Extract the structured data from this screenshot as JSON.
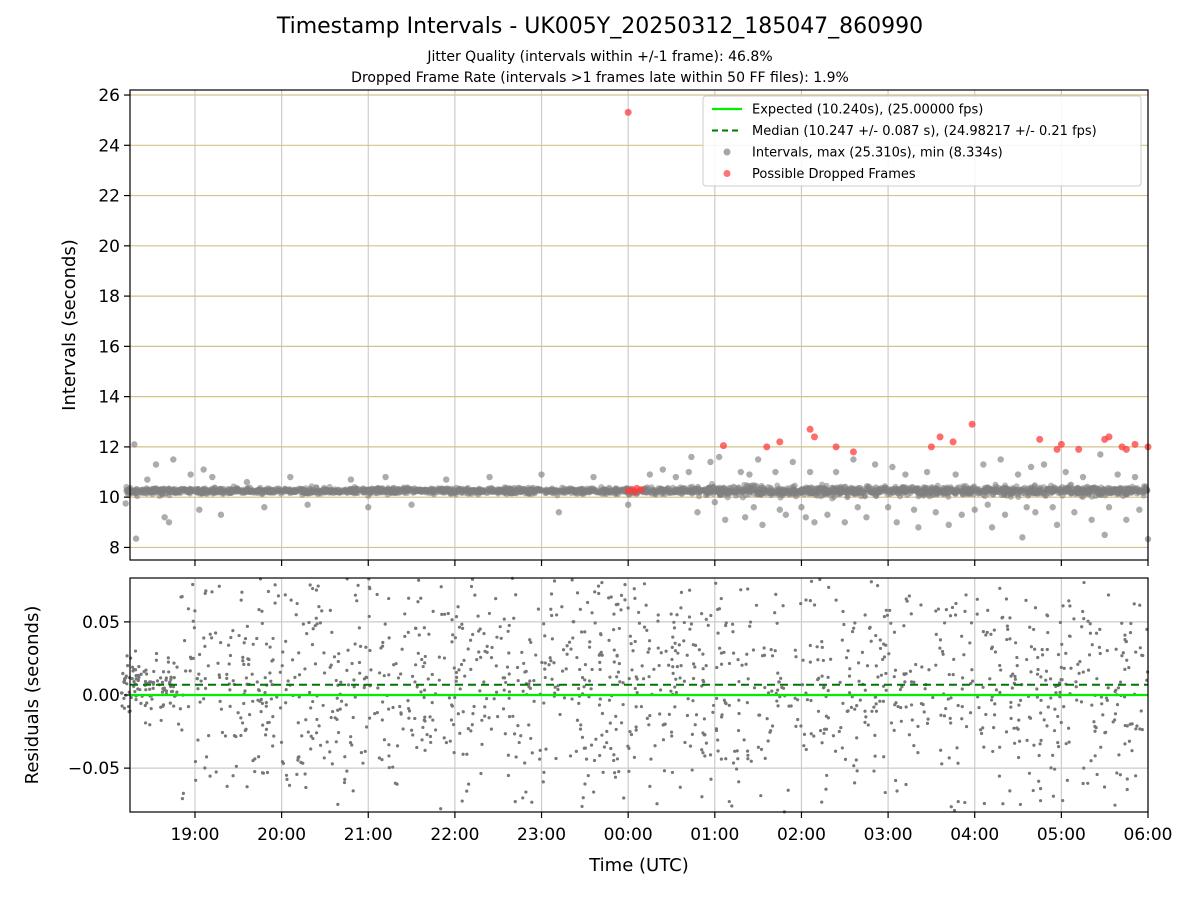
{
  "figure": {
    "title": "Timestamp Intervals - UK005Y_20250312_185047_860990",
    "subtitle1": "Jitter Quality (intervals within +/-1 frame): 46.8%",
    "subtitle2": "Dropped Frame Rate (intervals >1 frames late within 50 FF files): 1.9%"
  },
  "chart_data": [
    {
      "type": "scatter",
      "panel": "top",
      "ylabel": "Intervals (seconds)",
      "xlabel": "",
      "x_unit": "hours relative to 00:00 UTC",
      "xlim": [
        -5.75,
        6.0
      ],
      "ylim": [
        7.5,
        26.2
      ],
      "yticks": [
        8,
        10,
        12,
        14,
        16,
        18,
        20,
        22,
        24,
        26
      ],
      "ytick_labels": [
        "8",
        "10",
        "12",
        "14",
        "16",
        "18",
        "20",
        "22",
        "24",
        "26"
      ],
      "xticks": [
        -5,
        -4,
        -3,
        -2,
        -1,
        0,
        1,
        2,
        3,
        4,
        5,
        6
      ],
      "grid": true,
      "horizontal_grid_color": "#d4c28a",
      "legend_position": "upper-right",
      "legend": [
        {
          "label": "Expected (10.240s), (25.00000 fps)",
          "kind": "solid-line",
          "color": "#00ee00"
        },
        {
          "label": "Median (10.247 +/- 0.087 s), (24.98217 +/- 0.21 fps)",
          "kind": "dashed-line",
          "color": "#007700"
        },
        {
          "label": "Intervals, max (25.310s), min (8.334s)",
          "kind": "marker",
          "color": "#808080"
        },
        {
          "label": "Possible Dropped Frames",
          "kind": "marker",
          "color": "#ff3b3b"
        }
      ],
      "expected_value": 10.24,
      "median_value": 10.247,
      "median_std": 0.087,
      "max_interval": 25.31,
      "min_interval": 8.334,
      "series": [
        {
          "name": "Intervals, max (25.310s), min (8.334s)",
          "color": "#808080",
          "outliers": [
            [
              -5.8,
              9.75
            ],
            [
              -5.7,
              12.1
            ],
            [
              -5.68,
              8.35
            ],
            [
              -5.62,
              10.25
            ],
            [
              -5.55,
              10.7
            ],
            [
              -5.45,
              11.3
            ],
            [
              -5.35,
              9.2
            ],
            [
              -5.3,
              9.0
            ],
            [
              -5.25,
              11.5
            ],
            [
              -5.05,
              10.9
            ],
            [
              -4.95,
              9.5
            ],
            [
              -4.9,
              11.1
            ],
            [
              -4.8,
              10.8
            ],
            [
              -4.7,
              9.3
            ],
            [
              -4.4,
              10.6
            ],
            [
              -4.2,
              9.6
            ],
            [
              -3.9,
              10.8
            ],
            [
              -3.7,
              9.7
            ],
            [
              -3.2,
              10.7
            ],
            [
              -3.0,
              9.6
            ],
            [
              -2.8,
              10.8
            ],
            [
              -2.5,
              9.7
            ],
            [
              -2.1,
              10.7
            ],
            [
              -1.6,
              10.8
            ],
            [
              -1.0,
              10.9
            ],
            [
              -0.8,
              9.4
            ],
            [
              -0.4,
              10.8
            ],
            [
              0.0,
              9.7
            ],
            [
              0.25,
              10.9
            ],
            [
              0.4,
              11.1
            ],
            [
              0.55,
              10.8
            ],
            [
              0.7,
              11.0
            ],
            [
              0.73,
              11.6
            ],
            [
              0.8,
              9.4
            ],
            [
              0.95,
              11.4
            ],
            [
              1.0,
              9.8
            ],
            [
              1.05,
              11.6
            ],
            [
              1.12,
              9.1
            ],
            [
              1.3,
              11.0
            ],
            [
              1.35,
              9.2
            ],
            [
              1.4,
              10.9
            ],
            [
              1.45,
              9.6
            ],
            [
              1.5,
              11.5
            ],
            [
              1.55,
              8.9
            ],
            [
              1.7,
              11.0
            ],
            [
              1.75,
              9.5
            ],
            [
              1.82,
              9.3
            ],
            [
              1.9,
              11.4
            ],
            [
              2.0,
              9.6
            ],
            [
              2.05,
              9.2
            ],
            [
              2.1,
              11.0
            ],
            [
              2.15,
              9.0
            ],
            [
              2.3,
              9.3
            ],
            [
              2.4,
              11.0
            ],
            [
              2.5,
              9.0
            ],
            [
              2.6,
              11.5
            ],
            [
              2.65,
              9.6
            ],
            [
              2.75,
              9.2
            ],
            [
              2.85,
              11.3
            ],
            [
              3.0,
              9.6
            ],
            [
              3.05,
              11.2
            ],
            [
              3.1,
              9.0
            ],
            [
              3.2,
              10.9
            ],
            [
              3.3,
              9.5
            ],
            [
              3.35,
              8.8
            ],
            [
              3.45,
              11.0
            ],
            [
              3.55,
              9.4
            ],
            [
              3.7,
              8.9
            ],
            [
              3.78,
              10.9
            ],
            [
              3.85,
              9.3
            ],
            [
              4.0,
              9.5
            ],
            [
              4.1,
              11.3
            ],
            [
              4.15,
              9.7
            ],
            [
              4.2,
              8.8
            ],
            [
              4.3,
              11.5
            ],
            [
              4.35,
              9.3
            ],
            [
              4.5,
              10.9
            ],
            [
              4.55,
              8.4
            ],
            [
              4.6,
              9.6
            ],
            [
              4.65,
              11.2
            ],
            [
              4.7,
              9.4
            ],
            [
              4.8,
              11.3
            ],
            [
              4.9,
              9.6
            ],
            [
              4.95,
              8.9
            ],
            [
              5.05,
              11.0
            ],
            [
              5.15,
              9.4
            ],
            [
              5.25,
              10.8
            ],
            [
              5.35,
              9.1
            ],
            [
              5.45,
              11.7
            ],
            [
              5.5,
              8.5
            ],
            [
              5.55,
              9.6
            ],
            [
              5.65,
              10.9
            ],
            [
              5.75,
              9.1
            ],
            [
              5.85,
              10.8
            ],
            [
              5.9,
              9.5
            ],
            [
              6.0,
              8.33
            ]
          ]
        },
        {
          "name": "Possible Dropped Frames",
          "color": "#ff3b3b",
          "points": [
            [
              0.0,
              25.31
            ],
            [
              0.0,
              10.25
            ],
            [
              0.05,
              10.3
            ],
            [
              0.08,
              10.2
            ],
            [
              0.1,
              10.35
            ],
            [
              0.15,
              10.3
            ],
            [
              1.1,
              12.05
            ],
            [
              1.6,
              12.0
            ],
            [
              1.75,
              12.2
            ],
            [
              2.1,
              12.7
            ],
            [
              2.15,
              12.4
            ],
            [
              2.4,
              12.0
            ],
            [
              2.6,
              11.8
            ],
            [
              3.5,
              12.0
            ],
            [
              3.6,
              12.4
            ],
            [
              3.75,
              12.2
            ],
            [
              3.97,
              12.9
            ],
            [
              4.75,
              12.3
            ],
            [
              4.95,
              11.9
            ],
            [
              5.0,
              12.1
            ],
            [
              5.2,
              11.9
            ],
            [
              5.5,
              12.3
            ],
            [
              5.55,
              12.4
            ],
            [
              5.7,
              12.0
            ],
            [
              5.75,
              11.9
            ],
            [
              5.85,
              12.1
            ],
            [
              6.0,
              12.0
            ]
          ]
        }
      ]
    },
    {
      "type": "scatter",
      "panel": "bottom",
      "ylabel": "Residuals (seconds)",
      "xlabel": "Time (UTC)",
      "xlim": [
        -5.75,
        6.0
      ],
      "ylim": [
        -0.08,
        0.08
      ],
      "yticks": [
        0.05,
        0.0,
        -0.05
      ],
      "ytick_labels": [
        "0.05",
        "0.00",
        "−0.05"
      ],
      "xticks": [
        -5,
        -4,
        -3,
        -2,
        -1,
        0,
        1,
        2,
        3,
        4,
        5,
        6
      ],
      "xtick_labels": [
        "19:00",
        "20:00",
        "21:00",
        "22:00",
        "23:00",
        "00:00",
        "01:00",
        "02:00",
        "03:00",
        "04:00",
        "05:00",
        "06:00"
      ],
      "grid": true,
      "expected_residual": 0.0,
      "median_residual": 0.007,
      "residual_x_range": [
        -5.85,
        6.0
      ],
      "residual_spread": {
        "early_window_end": -5.2,
        "early_sd": 0.012,
        "late_sd": 0.045
      },
      "point_color": "#777777",
      "point_count": 1600
    }
  ],
  "colors": {
    "expected": "#00ee00",
    "median": "#007700",
    "interval": "#808080",
    "dropped": "#ff3b3b",
    "residual": "#777777"
  }
}
